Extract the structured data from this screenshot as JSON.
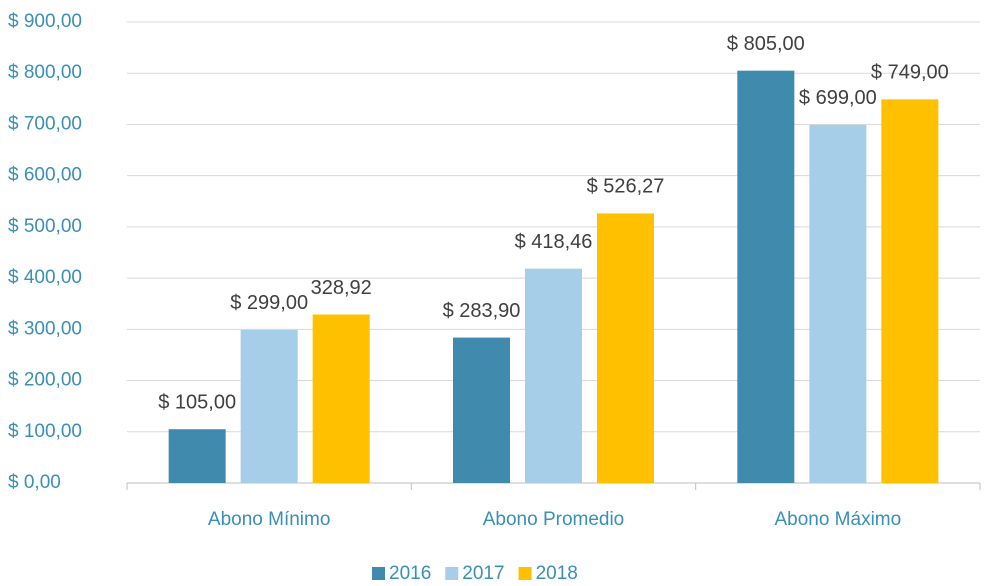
{
  "chart_data": {
    "type": "bar",
    "categories": [
      "Abono Mínimo",
      "Abono Promedio",
      "Abono Máximo"
    ],
    "series": [
      {
        "name": "2016",
        "color": "#3f8aad",
        "values": [
          105,
          283.9,
          805
        ],
        "value_labels": [
          "$ 105,00",
          "$ 283,90",
          "$ 805,00"
        ]
      },
      {
        "name": "2017",
        "color": "#a6cee8",
        "values": [
          299,
          418.46,
          699
        ],
        "value_labels": [
          "$ 299,00",
          "$ 418,46",
          "$ 699,00"
        ]
      },
      {
        "name": "2018",
        "color": "#ffc000",
        "values": [
          328.92,
          526.27,
          749
        ],
        "value_labels": [
          "328,92",
          "$ 526,27",
          "$ 749,00"
        ]
      }
    ],
    "ylim": [
      0,
      900
    ],
    "yticks": [
      {
        "value": 0,
        "label": "$ 0,00"
      },
      {
        "value": 100,
        "label": "$ 100,00"
      },
      {
        "value": 200,
        "label": "$ 200,00"
      },
      {
        "value": 300,
        "label": "$ 300,00"
      },
      {
        "value": 400,
        "label": "$ 400,00"
      },
      {
        "value": 500,
        "label": "$ 500,00"
      },
      {
        "value": 600,
        "label": "$ 600,00"
      },
      {
        "value": 700,
        "label": "$ 700,00"
      },
      {
        "value": 800,
        "label": "$ 800,00"
      },
      {
        "value": 900,
        "label": "$ 900,00"
      }
    ],
    "grid": true,
    "legend": "bottom"
  }
}
